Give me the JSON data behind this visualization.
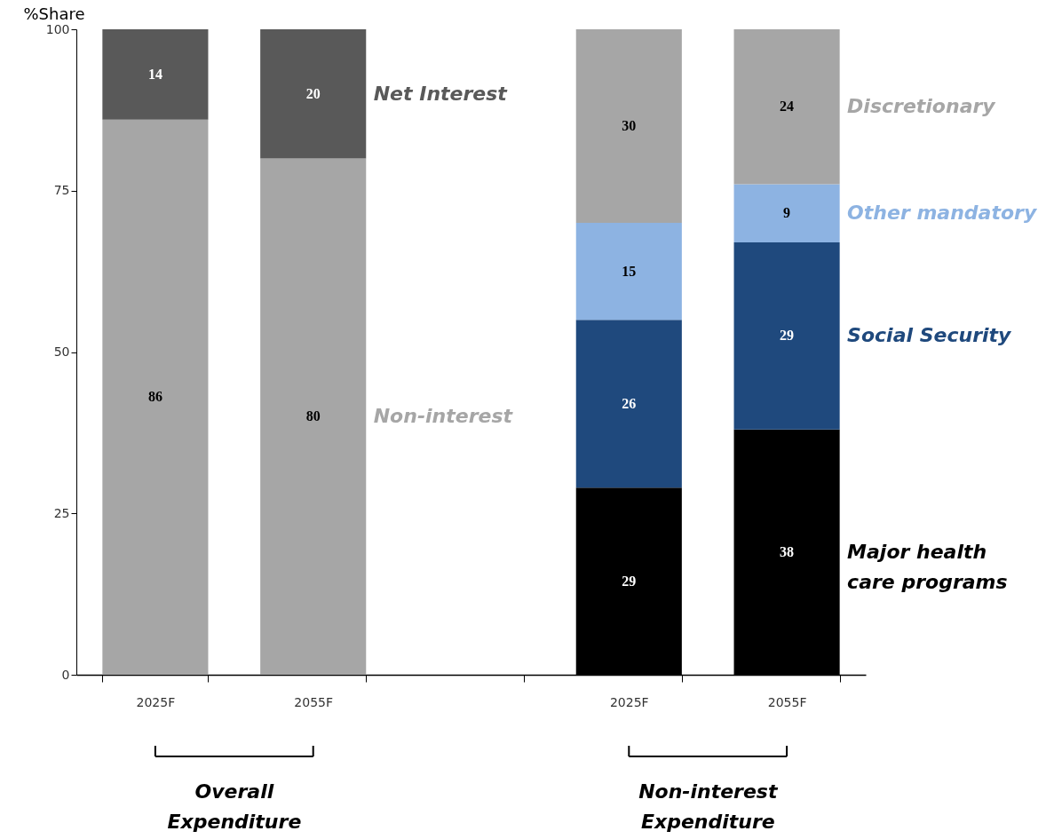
{
  "chart_data": {
    "type": "bar",
    "stacked": true,
    "ylabel": "%Share",
    "categories": [
      "2025F",
      "2055F",
      null,
      "2025F",
      "2055F"
    ],
    "series": [
      {
        "name": "Non-interest",
        "color": "#a6a6a6",
        "values": [
          86,
          80,
          null,
          null,
          null
        ]
      },
      {
        "name": "Net Interest",
        "color": "#595959",
        "values": [
          14,
          20,
          null,
          null,
          null
        ]
      },
      {
        "name": "Major health care programs",
        "color": "#000000",
        "values": [
          null,
          null,
          null,
          29,
          38
        ]
      },
      {
        "name": "Social Security",
        "color": "#1f497d",
        "values": [
          null,
          null,
          null,
          26,
          29
        ]
      },
      {
        "name": "Other mandatory",
        "color": "#8db3e2",
        "values": [
          null,
          null,
          null,
          15,
          9
        ]
      },
      {
        "name": "Discretionary",
        "color": "#a6a6a6",
        "values": [
          null,
          null,
          null,
          30,
          24
        ]
      }
    ],
    "ylim": [
      0,
      100
    ],
    "yticks": [
      0,
      25,
      50,
      75,
      100
    ],
    "grid": false,
    "legend": false,
    "data_labels": true,
    "annotations": [
      "Overall Expenditure",
      "Non-interest Expenditure"
    ]
  }
}
